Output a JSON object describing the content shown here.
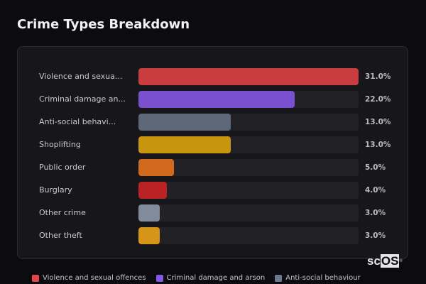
{
  "title": "Crime Types Breakdown",
  "watermark": {
    "prefix": "sc",
    "boxed": "OS",
    "mark": "®"
  },
  "chart_data": {
    "type": "bar",
    "orientation": "horizontal",
    "title": "Crime Types Breakdown",
    "xlabel": "",
    "ylabel": "",
    "xlim": [
      0,
      31
    ],
    "grid": false,
    "legend_position": "bottom",
    "categories": [
      "Violence and sexual offences",
      "Criminal damage and arson",
      "Anti-social behaviour",
      "Shoplifting",
      "Public order",
      "Burglary",
      "Other crime",
      "Other theft"
    ],
    "display_labels": [
      "Violence and sexua...",
      "Criminal damage an...",
      "Anti-social behavi...",
      "Shoplifting",
      "Public order",
      "Burglary",
      "Other crime",
      "Other theft"
    ],
    "values": [
      31.0,
      22.0,
      13.0,
      13.0,
      5.0,
      4.0,
      3.0,
      3.0
    ],
    "value_labels": [
      "31.0%",
      "22.0%",
      "13.0%",
      "13.0%",
      "5.0%",
      "4.0%",
      "3.0%",
      "3.0%"
    ],
    "colors": [
      "#c93c40",
      "#7a4fd0",
      "#5d6878",
      "#c8950f",
      "#d26a1e",
      "#bb2226",
      "#808c9c",
      "#d69418"
    ]
  },
  "legend": [
    {
      "label": "Violence and sexual offences",
      "color": "#e5454a"
    },
    {
      "label": "Criminal damage and arson",
      "color": "#8358e8"
    },
    {
      "label": "Anti-social behaviour",
      "color": "#6b7a90"
    }
  ]
}
